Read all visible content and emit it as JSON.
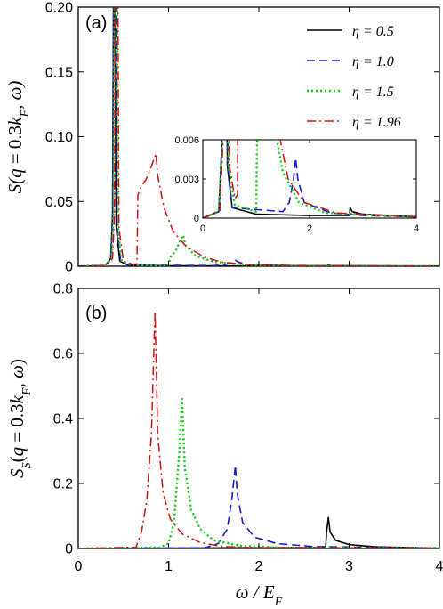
{
  "figure": {
    "xlabel": "ω / E_F",
    "x_ticks": [
      "0",
      "1",
      "2",
      "3",
      "4"
    ]
  },
  "chart_data": [
    {
      "type": "line",
      "panel_label": "(a)",
      "ylabel": "S(q = 0.3k_F, ω)",
      "xlim": [
        0,
        4
      ],
      "ylim": [
        0,
        0.2
      ],
      "x_ticks": [
        "0",
        "1",
        "2",
        "3",
        "4"
      ],
      "y_ticks": [
        "0",
        "0.05",
        "0.10",
        "0.15",
        "0.20"
      ],
      "legend_position": "top-right",
      "series": [
        {
          "name": "η = 0.5",
          "color": "#000000",
          "style": "solid",
          "points": [
            [
              0,
              0
            ],
            [
              0.3,
              0.0005
            ],
            [
              0.36,
              0.006
            ],
            [
              0.38,
              0.04
            ],
            [
              0.39,
              0.2
            ],
            [
              0.405,
              0.2
            ],
            [
              0.42,
              0.03
            ],
            [
              0.46,
              0.004
            ],
            [
              0.55,
              0.0008
            ],
            [
              1.0,
              0.0003
            ],
            [
              2.0,
              0.0002
            ],
            [
              2.75,
              0.0002
            ],
            [
              2.76,
              0.0008
            ],
            [
              2.8,
              0.0005
            ],
            [
              3.0,
              0.0003
            ],
            [
              4,
              0.0001
            ]
          ]
        },
        {
          "name": "η = 1.0",
          "color": "#1a1acc",
          "style": "dashed",
          "points": [
            [
              0,
              0
            ],
            [
              0.3,
              0.0005
            ],
            [
              0.36,
              0.006
            ],
            [
              0.38,
              0.04
            ],
            [
              0.39,
              0.2
            ],
            [
              0.42,
              0.2
            ],
            [
              0.43,
              0.03
            ],
            [
              0.47,
              0.004
            ],
            [
              0.55,
              0.0008
            ],
            [
              1.5,
              0.0005
            ],
            [
              1.62,
              0.0012
            ],
            [
              1.7,
              0.003
            ],
            [
              1.74,
              0.0046
            ],
            [
              1.78,
              0.003
            ],
            [
              1.9,
              0.0012
            ],
            [
              2.4,
              0.0004
            ],
            [
              3.0,
              0.0002
            ],
            [
              4,
              0.0001
            ]
          ]
        },
        {
          "name": "η = 1.5",
          "color": "#10cc10",
          "style": "dotted",
          "points": [
            [
              0,
              0
            ],
            [
              0.3,
              0.0005
            ],
            [
              0.37,
              0.006
            ],
            [
              0.39,
              0.04
            ],
            [
              0.4,
              0.2
            ],
            [
              0.43,
              0.2
            ],
            [
              0.44,
              0.03
            ],
            [
              0.48,
              0.004
            ],
            [
              0.6,
              0.001
            ],
            [
              1.0,
              0.0005
            ],
            [
              1.02,
              0.007
            ],
            [
              1.08,
              0.012
            ],
            [
              1.13,
              0.02
            ],
            [
              1.16,
              0.024
            ],
            [
              1.19,
              0.016
            ],
            [
              1.3,
              0.008
            ],
            [
              1.5,
              0.0035
            ],
            [
              1.8,
              0.0012
            ],
            [
              2.3,
              0.0004
            ],
            [
              4,
              0.0001
            ]
          ]
        },
        {
          "name": "η = 1.96",
          "color": "#d01010",
          "style": "dashdot",
          "points": [
            [
              0,
              0
            ],
            [
              0.32,
              0.0006
            ],
            [
              0.38,
              0.006
            ],
            [
              0.4,
              0.04
            ],
            [
              0.41,
              0.2
            ],
            [
              0.44,
              0.2
            ],
            [
              0.45,
              0.03
            ],
            [
              0.5,
              0.004
            ],
            [
              0.6,
              0.0015
            ],
            [
              0.65,
              0.0018
            ],
            [
              0.66,
              0.055
            ],
            [
              0.7,
              0.062
            ],
            [
              0.75,
              0.067
            ],
            [
              0.8,
              0.075
            ],
            [
              0.84,
              0.083
            ],
            [
              0.86,
              0.087
            ],
            [
              0.88,
              0.07
            ],
            [
              0.95,
              0.045
            ],
            [
              1.05,
              0.027
            ],
            [
              1.2,
              0.015
            ],
            [
              1.4,
              0.007
            ],
            [
              1.6,
              0.003
            ],
            [
              1.9,
              0.0012
            ],
            [
              2.5,
              0.0004
            ],
            [
              4,
              0.0001
            ]
          ]
        }
      ],
      "inset": {
        "xlim": [
          0,
          4
        ],
        "ylim": [
          0,
          0.006
        ],
        "x_ticks": [
          "0",
          "2",
          "4"
        ],
        "y_ticks": [
          "0",
          "0.003",
          "0.006"
        ]
      }
    },
    {
      "type": "line",
      "panel_label": "(b)",
      "ylabel": "S_S(q = 0.3k_F, ω)",
      "xlim": [
        0,
        4
      ],
      "ylim": [
        0,
        0.8
      ],
      "x_ticks": [
        "0",
        "1",
        "2",
        "3",
        "4"
      ],
      "y_ticks": [
        "0",
        "0.2",
        "0.4",
        "0.6",
        "0.8"
      ],
      "series": [
        {
          "name": "η = 0.5",
          "color": "#000000",
          "style": "solid",
          "points": [
            [
              0,
              0
            ],
            [
              2.74,
              0.003
            ],
            [
              2.75,
              0.05
            ],
            [
              2.77,
              0.095
            ],
            [
              2.79,
              0.05
            ],
            [
              2.85,
              0.025
            ],
            [
              3.0,
              0.012
            ],
            [
              3.3,
              0.005
            ],
            [
              4,
              0.001
            ]
          ]
        },
        {
          "name": "η = 1.0",
          "color": "#1a1acc",
          "style": "dashed",
          "points": [
            [
              0,
              0
            ],
            [
              1.4,
              0.002
            ],
            [
              1.55,
              0.015
            ],
            [
              1.65,
              0.06
            ],
            [
              1.7,
              0.15
            ],
            [
              1.74,
              0.255
            ],
            [
              1.76,
              0.17
            ],
            [
              1.82,
              0.08
            ],
            [
              1.95,
              0.035
            ],
            [
              2.2,
              0.015
            ],
            [
              2.6,
              0.006
            ],
            [
              4,
              0.001
            ]
          ]
        },
        {
          "name": "η = 1.5",
          "color": "#10cc10",
          "style": "dotted",
          "points": [
            [
              0,
              0
            ],
            [
              0.9,
              0.003
            ],
            [
              1.0,
              0.015
            ],
            [
              1.06,
              0.08
            ],
            [
              1.12,
              0.3
            ],
            [
              1.15,
              0.46
            ],
            [
              1.18,
              0.25
            ],
            [
              1.25,
              0.12
            ],
            [
              1.35,
              0.06
            ],
            [
              1.5,
              0.025
            ],
            [
              1.8,
              0.008
            ],
            [
              2.3,
              0.002
            ],
            [
              4,
              0.0005
            ]
          ]
        },
        {
          "name": "η = 1.96",
          "color": "#d01010",
          "style": "dashdot",
          "points": [
            [
              0,
              0
            ],
            [
              0.64,
              0.004
            ],
            [
              0.7,
              0.05
            ],
            [
              0.76,
              0.15
            ],
            [
              0.81,
              0.35
            ],
            [
              0.85,
              0.73
            ],
            [
              0.88,
              0.35
            ],
            [
              0.94,
              0.17
            ],
            [
              1.02,
              0.09
            ],
            [
              1.15,
              0.045
            ],
            [
              1.35,
              0.018
            ],
            [
              1.6,
              0.006
            ],
            [
              2.0,
              0.002
            ],
            [
              4,
              0.0005
            ]
          ]
        }
      ]
    }
  ]
}
